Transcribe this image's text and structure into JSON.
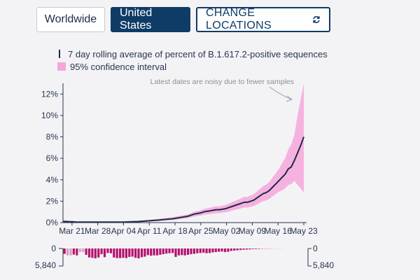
{
  "buttons": {
    "worldwide": "Worldwide",
    "united_states": "United States",
    "change_locations": "CHANGE LOCATIONS"
  },
  "legend": {
    "line_label": "7 day rolling average of percent of B.1.617.2-positive sequences",
    "band_label": "95% confidence interval"
  },
  "annotation": "Latest dates are noisy due to fewer samples",
  "colors": {
    "line": "#1f2a44",
    "band": "#f5a6dc",
    "bars": "#b5126f",
    "bars_light": "#d99bbf",
    "active_button": "#0f3c66"
  },
  "icons": {
    "change_locations": "refresh-icon"
  },
  "chart_data": {
    "type": "line",
    "x_ticks": [
      "Mar 21",
      "Mar 28",
      "Apr 04",
      "Apr 11",
      "Apr 18",
      "Apr 25",
      "May 02",
      "May 09",
      "May 16",
      "May 23"
    ],
    "y_ticks": [
      "0%",
      "2%",
      "4%",
      "6%",
      "8%",
      "10%",
      "12%"
    ],
    "ylim": [
      0,
      13
    ],
    "series": [
      {
        "name": "7 day rolling average of percent of B.1.617.2-positive sequences",
        "values": [
          0.1,
          0.1,
          0.08,
          0.08,
          0.06,
          0.05,
          0.05,
          0.05,
          0.05,
          0.05,
          0.05,
          0.05,
          0.05,
          0.05,
          0.05,
          0.05,
          0.05,
          0.05,
          0.05,
          0.05,
          0.06,
          0.07,
          0.08,
          0.09,
          0.1,
          0.12,
          0.14,
          0.16,
          0.18,
          0.2,
          0.22,
          0.25,
          0.28,
          0.3,
          0.33,
          0.35,
          0.4,
          0.45,
          0.5,
          0.55,
          0.6,
          0.7,
          0.8,
          0.85,
          0.9,
          1.0,
          1.05,
          1.1,
          1.15,
          1.2,
          1.2,
          1.25,
          1.3,
          1.4,
          1.5,
          1.6,
          1.7,
          1.8,
          1.9,
          1.9,
          2.0,
          2.1,
          2.3,
          2.5,
          2.7,
          2.8,
          3.0,
          3.3,
          3.6,
          3.9,
          4.2,
          4.5,
          5.0,
          5.2,
          5.8,
          6.5,
          7.2,
          8.0
        ]
      }
    ],
    "band": {
      "name": "95% confidence interval",
      "lower": [
        0.05,
        0.05,
        0.04,
        0.04,
        0.03,
        0.03,
        0.03,
        0.03,
        0.03,
        0.03,
        0.03,
        0.03,
        0.03,
        0.03,
        0.03,
        0.03,
        0.03,
        0.03,
        0.03,
        0.03,
        0.04,
        0.04,
        0.05,
        0.05,
        0.06,
        0.07,
        0.08,
        0.1,
        0.11,
        0.13,
        0.14,
        0.16,
        0.18,
        0.2,
        0.22,
        0.24,
        0.27,
        0.31,
        0.35,
        0.38,
        0.42,
        0.5,
        0.57,
        0.62,
        0.65,
        0.73,
        0.77,
        0.8,
        0.84,
        0.88,
        0.88,
        0.92,
        0.96,
        1.03,
        1.11,
        1.18,
        1.26,
        1.33,
        1.41,
        1.4,
        1.48,
        1.55,
        1.7,
        1.85,
        2.0,
        2.07,
        2.22,
        2.44,
        2.66,
        2.88,
        3.0,
        3.2,
        3.5,
        3.6,
        3.9,
        3.5,
        3.2,
        2.8
      ],
      "upper": [
        0.2,
        0.2,
        0.16,
        0.16,
        0.12,
        0.1,
        0.1,
        0.1,
        0.1,
        0.1,
        0.1,
        0.1,
        0.1,
        0.1,
        0.1,
        0.1,
        0.1,
        0.1,
        0.1,
        0.1,
        0.12,
        0.13,
        0.14,
        0.16,
        0.17,
        0.2,
        0.22,
        0.25,
        0.28,
        0.3,
        0.33,
        0.36,
        0.4,
        0.43,
        0.47,
        0.5,
        0.56,
        0.61,
        0.67,
        0.72,
        0.78,
        0.9,
        1.02,
        1.08,
        1.15,
        1.27,
        1.33,
        1.4,
        1.46,
        1.52,
        1.52,
        1.58,
        1.64,
        1.77,
        1.89,
        2.02,
        2.14,
        2.27,
        2.4,
        2.4,
        2.52,
        2.65,
        2.9,
        3.15,
        3.4,
        3.55,
        3.8,
        4.2,
        4.6,
        5.0,
        5.5,
        6.0,
        6.8,
        7.3,
        8.2,
        10.0,
        11.5,
        13.5
      ]
    },
    "counts_scale": [
      "0",
      "5,840"
    ],
    "counts": [
      1800,
      2300,
      2300,
      2000,
      2300,
      1200,
      1200,
      2100,
      3000,
      3100,
      3300,
      3000,
      1900,
      2900,
      1500,
      1600,
      3000,
      3200,
      3200,
      3100,
      3200,
      2800,
      2700,
      3100,
      3300,
      2900,
      2700,
      2200,
      2400,
      2300,
      2300,
      2100,
      1900,
      1700,
      1600,
      1500,
      2800,
      2300,
      2200,
      2300,
      2100,
      1900,
      1800,
      1600,
      1500,
      1400,
      1600,
      1500,
      1300,
      1200,
      1100,
      1000,
      1200,
      1100,
      800,
      700,
      600,
      500,
      400,
      350,
      300,
      220,
      180,
      150,
      100,
      80,
      60,
      40,
      30,
      20,
      15,
      10,
      8,
      6,
      5,
      4,
      3,
      3
    ],
    "light_bar_indices": [
      1,
      2,
      5,
      6
    ]
  }
}
